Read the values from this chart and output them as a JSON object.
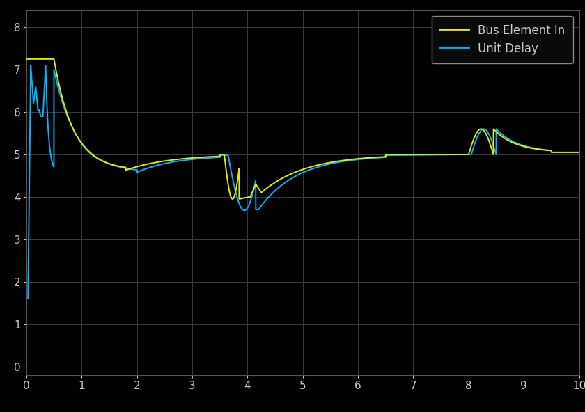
{
  "background_color": "#000000",
  "axes_bg_color": "#000000",
  "grid_color": "#3a3a3a",
  "tick_color": "#c8c8c8",
  "label_color": "#c8c8c8",
  "legend_bg": "#1a1a1a",
  "legend_edge": "#888888",
  "line_yellow": "#e8e800",
  "line_blue": "#00b4ff",
  "xlim": [
    0,
    10
  ],
  "ylim": [
    -0.2,
    8.4
  ],
  "xticks": [
    0,
    1,
    2,
    3,
    4,
    5,
    6,
    7,
    8,
    9,
    10
  ],
  "yticks": [
    0,
    1,
    2,
    3,
    4,
    5,
    6,
    7,
    8
  ],
  "legend_labels": [
    "Bus Element In",
    "Unit Delay"
  ],
  "line_width": 1.4
}
